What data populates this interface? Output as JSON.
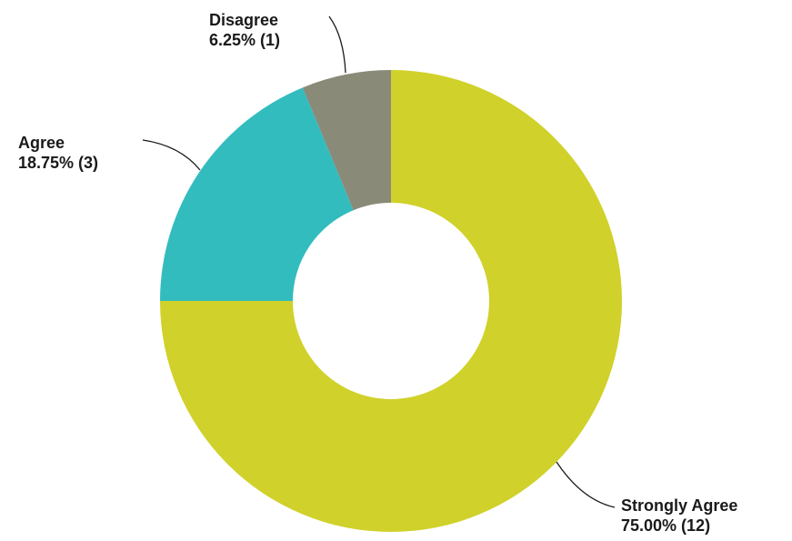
{
  "chart_data": {
    "type": "pie",
    "variant": "donut",
    "title": "",
    "slices": [
      {
        "label": "Strongly Agree",
        "value": 12,
        "percent_label": "75.00% (12)",
        "color": "#d0d12a"
      },
      {
        "label": "Agree",
        "value": 3,
        "percent_label": "18.75% (3)",
        "color": "#33bcbe"
      },
      {
        "label": "Disagree",
        "value": 1,
        "percent_label": "6.25% (1)",
        "color": "#8a8a79"
      }
    ],
    "legend": "none"
  }
}
